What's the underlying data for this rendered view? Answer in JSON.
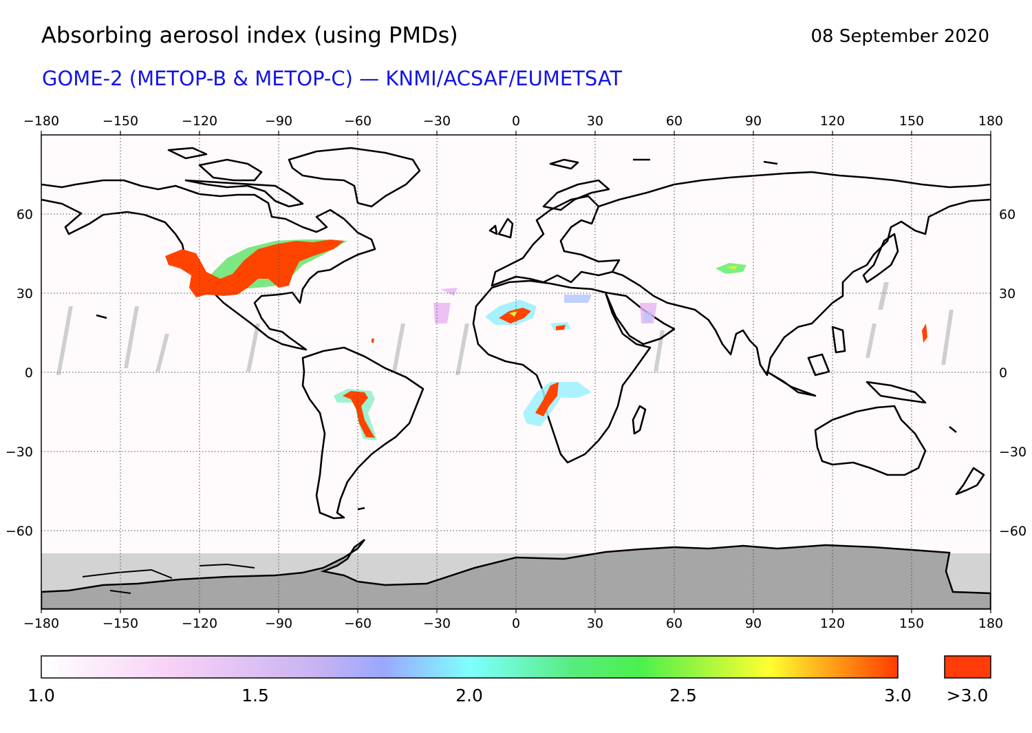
{
  "header": {
    "title": "Absorbing aerosol index (using PMDs)",
    "date": "08 September 2020",
    "subtitle": "GOME-2 (METOP-B & METOP-C) — KNMI/ACSAF/EUMETSAT"
  },
  "map": {
    "projection": "equirectangular",
    "lon_range": [
      -180,
      180
    ],
    "lat_range": [
      -90,
      90
    ],
    "lon_ticks": [
      "−180",
      "−150",
      "−120",
      "−90",
      "−60",
      "−30",
      "0",
      "30",
      "60",
      "90",
      "120",
      "150",
      "180"
    ],
    "lat_ticks": [
      "60",
      "30",
      "0",
      "−30",
      "−60"
    ],
    "gridlines": "dotted",
    "no_data_color": "#d3d3d3",
    "land_mask_color": "#a6a6a6",
    "aerosol_regions": [
      {
        "name": "western North America smoke",
        "level": ">3.0"
      },
      {
        "name": "Sahara dust",
        "level": "3.0"
      },
      {
        "name": "South America biomass burning",
        "level": ">3.0"
      },
      {
        "name": "southern Africa biomass burning",
        "level": ">3.0"
      },
      {
        "name": "Central Asia dust",
        "level": "2.5"
      }
    ]
  },
  "colorbar": {
    "labels": [
      "1.0",
      "1.5",
      "2.0",
      "2.5",
      "3.0"
    ],
    "overflow_label": ">3.0",
    "stops": [
      "#ffffff",
      "#f5c6f5",
      "#9aa8ff",
      "#7fffff",
      "#4cf04c",
      "#ffff30",
      "#ff3c00"
    ],
    "overflow_color": "#ff3c0a"
  }
}
